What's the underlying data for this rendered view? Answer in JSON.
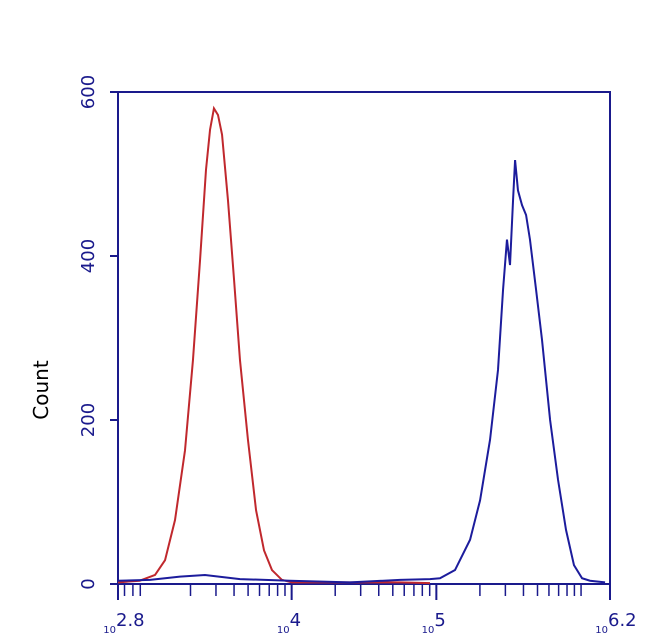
{
  "chart_data": {
    "type": "line",
    "y_label": "Count",
    "x_scale": "log",
    "x_label_base": "10",
    "xlim": [
      2.8,
      6.2
    ],
    "xticks": [
      2.8,
      4,
      5,
      6.2
    ],
    "x_minor_ticks": [
      2.845,
      2.903,
      2.954,
      3.301,
      3.477,
      3.602,
      3.699,
      3.778,
      3.845,
      3.903,
      3.954,
      4.301,
      4.477,
      4.602,
      4.699,
      4.778,
      4.845,
      4.903,
      4.954,
      5.301,
      5.477,
      5.602,
      5.699,
      5.778,
      5.845,
      5.903,
      5.954,
      6.0
    ],
    "ylim": [
      0,
      600
    ],
    "yticks": [
      0,
      200,
      400,
      600
    ],
    "axis_color": "#1a1a8c",
    "series": [
      {
        "color": "#c0282d",
        "x": [
          2.8,
          2.95,
          3.056,
          3.125,
          3.194,
          3.263,
          3.318,
          3.367,
          3.408,
          3.436,
          3.463,
          3.491,
          3.519,
          3.56,
          3.602,
          3.643,
          3.698,
          3.754,
          3.809,
          3.864,
          3.933,
          4.002,
          4.403,
          4.749,
          4.956
        ],
        "values": [
          2,
          4,
          11,
          29,
          78,
          163,
          273,
          395,
          505,
          554,
          580,
          572,
          548,
          468,
          371,
          273,
          176,
          90,
          41,
          17,
          5,
          2,
          2,
          2,
          1
        ]
      },
      {
        "color": "#1c1c9c",
        "x": [
          2.8,
          3.021,
          3.228,
          3.401,
          3.643,
          3.989,
          4.403,
          4.749,
          4.956,
          5.025,
          5.129,
          5.233,
          5.302,
          5.371,
          5.426,
          5.461,
          5.488,
          5.509,
          5.53,
          5.544,
          5.564,
          5.592,
          5.62,
          5.647,
          5.689,
          5.73,
          5.786,
          5.841,
          5.896,
          5.951,
          6.007,
          6.062,
          6.166
        ],
        "values": [
          4,
          5,
          9,
          11,
          6,
          4,
          2,
          5,
          6,
          7,
          17,
          54,
          102,
          176,
          261,
          359,
          420,
          389,
          468,
          517,
          480,
          462,
          450,
          420,
          359,
          298,
          200,
          127,
          66,
          23,
          7,
          4,
          2
        ]
      }
    ]
  }
}
